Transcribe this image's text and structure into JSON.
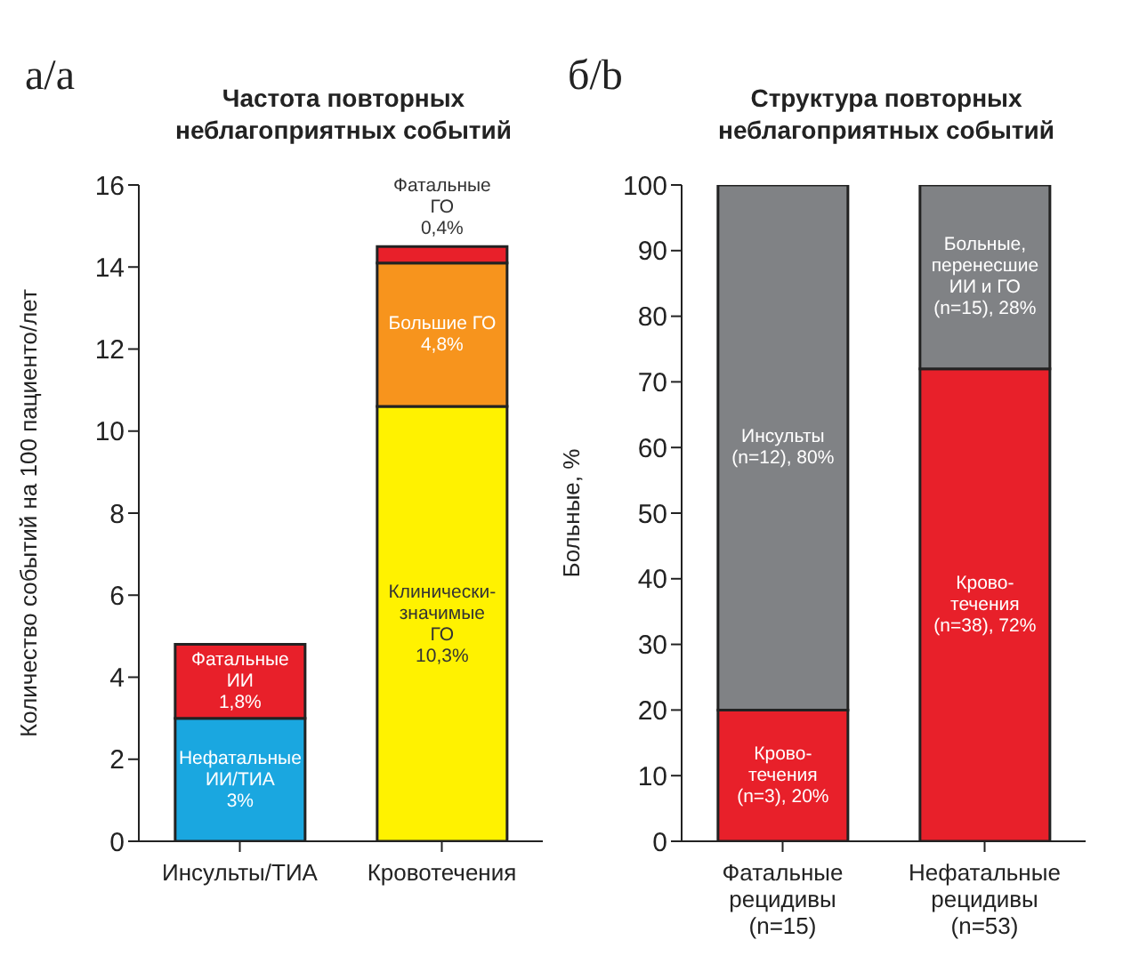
{
  "chart_data": [
    {
      "type": "bar",
      "stacked": true,
      "title": "Частота повторных\nнеблагоприятных событий",
      "ylabel": "Количество событий на 100 пациенто/лет",
      "annotations": [
        "а/a"
      ],
      "categories": [
        "Инсульты/ТИА",
        "Кровотечения"
      ],
      "ylim": [
        0,
        16
      ],
      "yticks": [
        0,
        2,
        4,
        6,
        8,
        10,
        12,
        14,
        16
      ],
      "series": [
        {
          "colors": [
            "#1aa7e0",
            "#fff200"
          ],
          "values": [
            3.0,
            10.6
          ],
          "value_labels": [
            "Нефатальные\nИИ/ТИА\n3%",
            "Клинически-\nзначимые\nГО\n10,3%"
          ]
        },
        {
          "colors": [
            "#e8202a",
            "#f7941d"
          ],
          "values": [
            1.8,
            3.5
          ],
          "value_labels": [
            "Фатальные\nИИ\n1,8%",
            "Большие ГО\n4,8%"
          ]
        },
        {
          "colors": [
            null,
            "#e8202a"
          ],
          "values": [
            null,
            0.4
          ],
          "value_labels": [
            null,
            "Фатальные\nГО\n0,4%"
          ]
        }
      ]
    },
    {
      "type": "bar",
      "stacked": true,
      "title": "Структура повторных\nнеблагоприятных событий",
      "ylabel": "Больные, %",
      "annotations": [
        "б/b"
      ],
      "categories": [
        "Фатальные\nрецидивы\n(n=15)",
        "Нефатальные\nрецидивы\n(n=53)"
      ],
      "ylim": [
        0,
        100
      ],
      "yticks": [
        0,
        10,
        20,
        30,
        40,
        50,
        60,
        70,
        80,
        90,
        100
      ],
      "series": [
        {
          "color": "#e8202a",
          "values": [
            20,
            72
          ],
          "value_labels": [
            "Крово-\nтечения\n(n=3), 20%",
            "Крово-\nтечения\n(n=38), 72%"
          ]
        },
        {
          "color": "#808285",
          "values": [
            80,
            28
          ],
          "value_labels": [
            "Инсульты\n(n=12), 80%",
            "Больные,\nперенесшие\nИИ и ГО\n(n=15), 28%"
          ]
        }
      ]
    }
  ]
}
